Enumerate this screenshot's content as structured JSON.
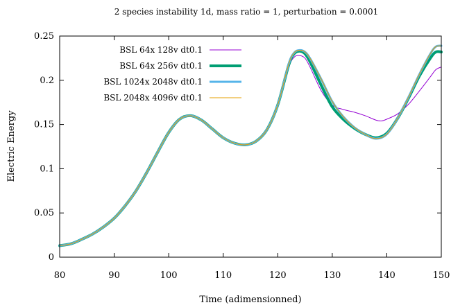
{
  "chart_data": {
    "type": "line",
    "title": "2 species instability 1d, mass ratio = 1, perturbation = 0.0001",
    "xlabel": "Time (adimensionned)",
    "ylabel": "Electric Energy",
    "xlim": [
      80,
      150
    ],
    "ylim": [
      0,
      0.25
    ],
    "xticks": [
      "80",
      "90",
      "100",
      "110",
      "120",
      "130",
      "140",
      "150"
    ],
    "yticks": [
      "0",
      "0.05",
      "0.1",
      "0.15",
      "0.2",
      "0.25"
    ],
    "grid": false,
    "legend_position": "top-left",
    "series": [
      {
        "name": "BSL 64x 128v dt0.1",
        "color": "#9400d3",
        "width": "thin",
        "points": [
          [
            80,
            0.013
          ],
          [
            82,
            0.015
          ],
          [
            84,
            0.02
          ],
          [
            86,
            0.026
          ],
          [
            88,
            0.034
          ],
          [
            90,
            0.044
          ],
          [
            92,
            0.058
          ],
          [
            94,
            0.075
          ],
          [
            96,
            0.096
          ],
          [
            98,
            0.119
          ],
          [
            100,
            0.141
          ],
          [
            102,
            0.156
          ],
          [
            104,
            0.16
          ],
          [
            106,
            0.155
          ],
          [
            108,
            0.145
          ],
          [
            110,
            0.135
          ],
          [
            112,
            0.129
          ],
          [
            114,
            0.127
          ],
          [
            116,
            0.131
          ],
          [
            118,
            0.144
          ],
          [
            120,
            0.17
          ],
          [
            122,
            0.214
          ],
          [
            123,
            0.226
          ],
          [
            124,
            0.228
          ],
          [
            125,
            0.225
          ],
          [
            126,
            0.214
          ],
          [
            128,
            0.188
          ],
          [
            130,
            0.172
          ],
          [
            132,
            0.167
          ],
          [
            134,
            0.164
          ],
          [
            136,
            0.16
          ],
          [
            138,
            0.155
          ],
          [
            139,
            0.154
          ],
          [
            140,
            0.156
          ],
          [
            142,
            0.162
          ],
          [
            144,
            0.173
          ],
          [
            146,
            0.188
          ],
          [
            148,
            0.204
          ],
          [
            149,
            0.212
          ],
          [
            150,
            0.215
          ]
        ]
      },
      {
        "name": "BSL 64x 256v dt0.1",
        "color": "#009e73",
        "width": "thick",
        "points": [
          [
            80,
            0.013
          ],
          [
            82,
            0.015
          ],
          [
            84,
            0.02
          ],
          [
            86,
            0.026
          ],
          [
            88,
            0.034
          ],
          [
            90,
            0.044
          ],
          [
            92,
            0.058
          ],
          [
            94,
            0.075
          ],
          [
            96,
            0.096
          ],
          [
            98,
            0.119
          ],
          [
            100,
            0.141
          ],
          [
            102,
            0.156
          ],
          [
            104,
            0.16
          ],
          [
            106,
            0.155
          ],
          [
            108,
            0.145
          ],
          [
            110,
            0.135
          ],
          [
            112,
            0.129
          ],
          [
            114,
            0.127
          ],
          [
            116,
            0.131
          ],
          [
            118,
            0.144
          ],
          [
            120,
            0.172
          ],
          [
            122,
            0.217
          ],
          [
            123,
            0.23
          ],
          [
            124,
            0.233
          ],
          [
            125,
            0.23
          ],
          [
            126,
            0.22
          ],
          [
            128,
            0.194
          ],
          [
            130,
            0.17
          ],
          [
            132,
            0.156
          ],
          [
            134,
            0.146
          ],
          [
            136,
            0.139
          ],
          [
            138,
            0.135
          ],
          [
            140,
            0.14
          ],
          [
            142,
            0.157
          ],
          [
            144,
            0.18
          ],
          [
            146,
            0.205
          ],
          [
            148,
            0.225
          ],
          [
            149,
            0.232
          ],
          [
            150,
            0.232
          ]
        ]
      },
      {
        "name": "BSL 1024x 2048v dt0.1",
        "color": "#56b4e9",
        "width": "medium",
        "points": [
          [
            80,
            0.013
          ],
          [
            82,
            0.015
          ],
          [
            84,
            0.02
          ],
          [
            86,
            0.026
          ],
          [
            88,
            0.034
          ],
          [
            90,
            0.044
          ],
          [
            92,
            0.058
          ],
          [
            94,
            0.075
          ],
          [
            96,
            0.096
          ],
          [
            98,
            0.119
          ],
          [
            100,
            0.141
          ],
          [
            102,
            0.156
          ],
          [
            104,
            0.16
          ],
          [
            106,
            0.155
          ],
          [
            108,
            0.145
          ],
          [
            110,
            0.135
          ],
          [
            112,
            0.129
          ],
          [
            114,
            0.127
          ],
          [
            116,
            0.131
          ],
          [
            118,
            0.144
          ],
          [
            120,
            0.172
          ],
          [
            122,
            0.218
          ],
          [
            123,
            0.231
          ],
          [
            124,
            0.234
          ],
          [
            125,
            0.232
          ],
          [
            126,
            0.224
          ],
          [
            128,
            0.201
          ],
          [
            130,
            0.176
          ],
          [
            132,
            0.159
          ],
          [
            134,
            0.147
          ],
          [
            136,
            0.139
          ],
          [
            138,
            0.134
          ],
          [
            140,
            0.139
          ],
          [
            142,
            0.157
          ],
          [
            144,
            0.181
          ],
          [
            146,
            0.207
          ],
          [
            148,
            0.23
          ],
          [
            149,
            0.238
          ],
          [
            150,
            0.239
          ]
        ]
      },
      {
        "name": "BSL 2048x 4096v dt0.1",
        "color": "#e69f00",
        "width": "thin",
        "points": [
          [
            80,
            0.013
          ],
          [
            82,
            0.015
          ],
          [
            84,
            0.02
          ],
          [
            86,
            0.026
          ],
          [
            88,
            0.034
          ],
          [
            90,
            0.044
          ],
          [
            92,
            0.058
          ],
          [
            94,
            0.075
          ],
          [
            96,
            0.096
          ],
          [
            98,
            0.119
          ],
          [
            100,
            0.141
          ],
          [
            102,
            0.156
          ],
          [
            104,
            0.16
          ],
          [
            106,
            0.155
          ],
          [
            108,
            0.145
          ],
          [
            110,
            0.135
          ],
          [
            112,
            0.129
          ],
          [
            114,
            0.127
          ],
          [
            116,
            0.131
          ],
          [
            118,
            0.144
          ],
          [
            120,
            0.172
          ],
          [
            122,
            0.218
          ],
          [
            123,
            0.231
          ],
          [
            124,
            0.234
          ],
          [
            125,
            0.232
          ],
          [
            126,
            0.224
          ],
          [
            128,
            0.201
          ],
          [
            130,
            0.176
          ],
          [
            132,
            0.159
          ],
          [
            134,
            0.147
          ],
          [
            136,
            0.139
          ],
          [
            138,
            0.134
          ],
          [
            140,
            0.139
          ],
          [
            142,
            0.157
          ],
          [
            144,
            0.181
          ],
          [
            146,
            0.207
          ],
          [
            148,
            0.23
          ],
          [
            149,
            0.238
          ],
          [
            150,
            0.239
          ]
        ]
      }
    ]
  }
}
